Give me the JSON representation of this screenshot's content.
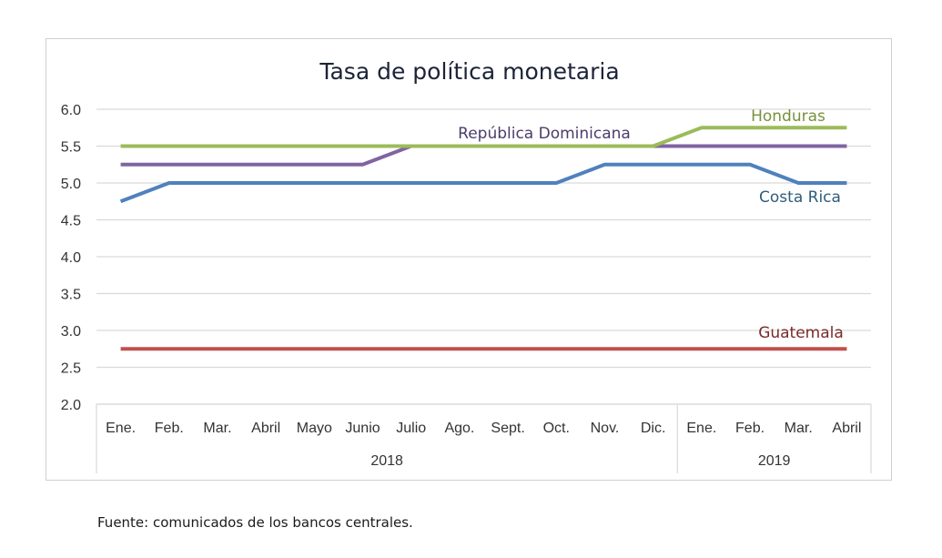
{
  "chart_data": {
    "type": "line",
    "title": "Tasa de política monetaria",
    "categories": [
      "Ene.",
      "Feb.",
      "Mar.",
      "Abril",
      "Mayo",
      "Junio",
      "Julio",
      "Ago.",
      "Sept.",
      "Oct.",
      "Nov.",
      "Dic.",
      "Ene.",
      "Feb.",
      "Mar.",
      "Abril"
    ],
    "year_groups": [
      {
        "label": "2018",
        "count": 12
      },
      {
        "label": "2019",
        "count": 4
      }
    ],
    "y_ticks": [
      "6.0",
      "5.5",
      "5.0",
      "4.5",
      "4.0",
      "3.5",
      "3.0",
      "2.5",
      "2.0"
    ],
    "ylim": [
      2.0,
      6.0
    ],
    "grid": true,
    "legend": "inline labels",
    "series": [
      {
        "name": "Honduras",
        "color": "#9bbb59",
        "label_color": "#76923c",
        "values": [
          5.5,
          5.5,
          5.5,
          5.5,
          5.5,
          5.5,
          5.5,
          5.5,
          5.5,
          5.5,
          5.5,
          5.5,
          5.75,
          5.75,
          5.75,
          5.75
        ]
      },
      {
        "name": "República Dominicana",
        "color": "#8064a2",
        "label_color": "#4b3c6b",
        "values": [
          5.25,
          5.25,
          5.25,
          5.25,
          5.25,
          5.25,
          5.5,
          5.5,
          5.5,
          5.5,
          5.5,
          5.5,
          5.5,
          5.5,
          5.5,
          5.5
        ]
      },
      {
        "name": "Costa Rica",
        "color": "#4f81bd",
        "label_color": "#2f5d7c",
        "values": [
          4.75,
          5.0,
          5.0,
          5.0,
          5.0,
          5.0,
          5.0,
          5.0,
          5.0,
          5.0,
          5.25,
          5.25,
          5.25,
          5.25,
          5.0,
          5.0
        ]
      },
      {
        "name": "Guatemala",
        "color": "#c0504d",
        "label_color": "#7a2a28",
        "values": [
          2.75,
          2.75,
          2.75,
          2.75,
          2.75,
          2.75,
          2.75,
          2.75,
          2.75,
          2.75,
          2.75,
          2.75,
          2.75,
          2.75,
          2.75,
          2.75
        ]
      }
    ]
  },
  "source_note": "Fuente: comunicados de los bancos centrales."
}
